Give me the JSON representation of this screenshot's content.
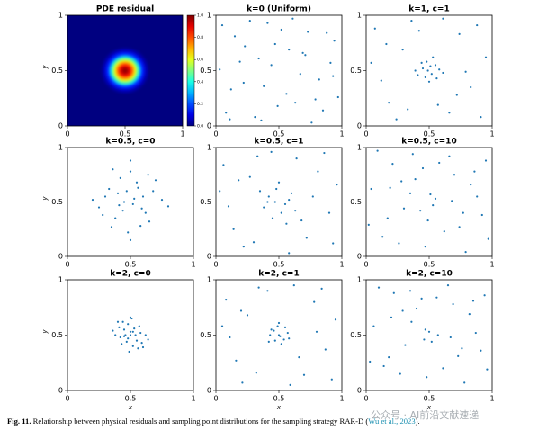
{
  "chart_data": [
    {
      "type": "heatmap",
      "title": "PDE residual",
      "ylabel": "y",
      "center": [
        0.5,
        0.5
      ],
      "radius": [
        0.2,
        0.17,
        0.14,
        0.12,
        0.1,
        0.08,
        0.06,
        0.04,
        0.02
      ],
      "values": [
        0.05,
        0.15,
        0.3,
        0.45,
        0.6,
        0.72,
        0.84,
        0.93,
        0.99
      ],
      "xlim": [
        0,
        1
      ],
      "ylim": [
        0,
        1
      ],
      "xticks": [
        0,
        0.5,
        1
      ],
      "yticks": [
        0,
        0.5,
        1
      ],
      "clim": [
        0,
        1
      ],
      "cticks": [
        {
          "value": 0,
          "label": "0.0"
        },
        0.2,
        0.4,
        0.6,
        0.8,
        {
          "value": 1,
          "label": "1.0"
        }
      ]
    },
    {
      "type": "scatter",
      "title": "k=0 (Uniform)",
      "color": "#1f77b4",
      "x": [
        0.05,
        0.12,
        0.23,
        0.31,
        0.44,
        0.52,
        0.63,
        0.71,
        0.82,
        0.94,
        0.08,
        0.19,
        0.27,
        0.38,
        0.49,
        0.58,
        0.67,
        0.76,
        0.88,
        0.97,
        0.03,
        0.15,
        0.34,
        0.41,
        0.56,
        0.73,
        0.85,
        0.91,
        0.22,
        0.47,
        0.61,
        0.79,
        0.36,
        0.11,
        0.69,
        0.93
      ],
      "y": [
        0.91,
        0.33,
        0.72,
        0.08,
        0.55,
        0.87,
        0.21,
        0.64,
        0.42,
        0.77,
        0.12,
        0.58,
        0.95,
        0.36,
        0.18,
        0.69,
        0.47,
        0.03,
        0.84,
        0.26,
        0.51,
        0.81,
        0.61,
        0.93,
        0.29,
        0.85,
        0.14,
        0.57,
        0.39,
        0.74,
        0.97,
        0.24,
        0.05,
        0.06,
        0.66,
        0.45
      ],
      "xlim": [
        0,
        1
      ],
      "ylim": [
        0,
        1
      ],
      "xticks": [
        0,
        0.5,
        1
      ],
      "yticks": [
        0,
        0.5,
        1
      ]
    },
    {
      "type": "scatter",
      "title": "k=1, c=1",
      "color": "#1f77b4",
      "x": [
        0.45,
        0.52,
        0.48,
        0.55,
        0.41,
        0.58,
        0.5,
        0.47,
        0.53,
        0.44,
        0.56,
        0.49,
        0.51,
        0.39,
        0.61,
        0.07,
        0.18,
        0.29,
        0.36,
        0.66,
        0.74,
        0.83,
        0.95,
        0.12,
        0.24,
        0.72,
        0.88,
        0.04,
        0.33,
        0.61,
        0.79,
        0.91,
        0.16,
        0.42,
        0.57
      ],
      "y": [
        0.52,
        0.47,
        0.58,
        0.55,
        0.46,
        0.51,
        0.4,
        0.44,
        0.62,
        0.57,
        0.43,
        0.5,
        0.54,
        0.5,
        0.48,
        0.88,
        0.21,
        0.69,
        0.95,
        0.12,
        0.83,
        0.35,
        0.62,
        0.41,
        0.06,
        0.28,
        0.91,
        0.57,
        0.15,
        0.97,
        0.49,
        0.08,
        0.74,
        0.86,
        0.19
      ],
      "xlim": [
        0,
        1
      ],
      "ylim": [
        0,
        1
      ],
      "xticks": [
        0,
        0.5,
        1
      ],
      "yticks": [
        0,
        0.5,
        1
      ]
    },
    {
      "type": "scatter",
      "title": "k=0.5, c=0",
      "ylabel": "y",
      "color": "#1f77b4",
      "x": [
        0.3,
        0.42,
        0.55,
        0.68,
        0.25,
        0.38,
        0.5,
        0.62,
        0.75,
        0.33,
        0.45,
        0.58,
        0.7,
        0.28,
        0.4,
        0.52,
        0.65,
        0.36,
        0.48,
        0.6,
        0.44,
        0.56,
        0.2,
        0.8,
        0.5,
        0.47,
        0.53,
        0.41,
        0.59,
        0.35,
        0.64,
        0.5
      ],
      "y": [
        0.55,
        0.72,
        0.68,
        0.6,
        0.45,
        0.35,
        0.78,
        0.4,
        0.52,
        0.62,
        0.5,
        0.28,
        0.7,
        0.38,
        0.58,
        0.48,
        0.32,
        0.8,
        0.22,
        0.55,
        0.42,
        0.63,
        0.52,
        0.46,
        0.15,
        0.6,
        0.53,
        0.47,
        0.44,
        0.27,
        0.75,
        0.88
      ],
      "xlim": [
        0,
        1
      ],
      "ylim": [
        0,
        1
      ],
      "xticks": [
        0,
        0.5,
        1
      ],
      "yticks": [
        0,
        0.5,
        1
      ]
    },
    {
      "type": "scatter",
      "title": "k=0.5, c=1",
      "color": "#1f77b4",
      "x": [
        0.42,
        0.55,
        0.48,
        0.6,
        0.38,
        0.52,
        0.45,
        0.58,
        0.35,
        0.63,
        0.5,
        0.47,
        0.56,
        0.41,
        0.06,
        0.14,
        0.27,
        0.33,
        0.72,
        0.81,
        0.9,
        0.96,
        0.1,
        0.22,
        0.68,
        0.86,
        0.03,
        0.3,
        0.64,
        0.77,
        0.93,
        0.18,
        0.44,
        0.58
      ],
      "y": [
        0.55,
        0.48,
        0.62,
        0.58,
        0.45,
        0.4,
        0.35,
        0.52,
        0.6,
        0.42,
        0.68,
        0.5,
        0.3,
        0.5,
        0.84,
        0.25,
        0.73,
        0.92,
        0.17,
        0.78,
        0.4,
        0.66,
        0.46,
        0.09,
        0.33,
        0.95,
        0.6,
        0.13,
        0.9,
        0.55,
        0.12,
        0.7,
        0.96,
        0.03
      ],
      "xlim": [
        0,
        1
      ],
      "ylim": [
        0,
        1
      ],
      "xticks": [
        0,
        0.5,
        1
      ],
      "yticks": [
        0,
        0.5,
        1
      ]
    },
    {
      "type": "scatter",
      "title": "k=0.5, c=10",
      "color": "#1f77b4",
      "x": [
        0.04,
        0.13,
        0.21,
        0.3,
        0.39,
        0.47,
        0.55,
        0.66,
        0.74,
        0.83,
        0.92,
        0.09,
        0.17,
        0.26,
        0.35,
        0.45,
        0.53,
        0.62,
        0.7,
        0.79,
        0.88,
        0.97,
        0.02,
        0.19,
        0.37,
        0.43,
        0.51,
        0.58,
        0.68,
        0.86,
        0.95,
        0.28,
        0.77,
        0.49
      ],
      "y": [
        0.62,
        0.18,
        0.85,
        0.44,
        0.71,
        0.09,
        0.53,
        0.92,
        0.27,
        0.66,
        0.38,
        0.97,
        0.35,
        0.12,
        0.58,
        0.81,
        0.47,
        0.23,
        0.75,
        0.04,
        0.55,
        0.16,
        0.29,
        0.63,
        0.94,
        0.42,
        0.57,
        0.86,
        0.51,
        0.78,
        0.88,
        0.69,
        0.4,
        0.33
      ],
      "xlim": [
        0,
        1
      ],
      "ylim": [
        0,
        1
      ],
      "xticks": [
        0,
        0.5,
        1
      ],
      "yticks": [
        0,
        0.5,
        1
      ]
    },
    {
      "type": "scatter",
      "title": "k=2, c=0",
      "ylabel": "y",
      "xlabel": "x",
      "color": "#1f77b4",
      "x": [
        0.5,
        0.45,
        0.55,
        0.42,
        0.58,
        0.48,
        0.52,
        0.38,
        0.62,
        0.47,
        0.53,
        0.44,
        0.56,
        0.5,
        0.41,
        0.59,
        0.46,
        0.54,
        0.36,
        0.64,
        0.49,
        0.51,
        0.43,
        0.57,
        0.5,
        0.4,
        0.6,
        0.48,
        0.52,
        0.45
      ],
      "y": [
        0.5,
        0.55,
        0.45,
        0.48,
        0.52,
        0.6,
        0.4,
        0.5,
        0.5,
        0.44,
        0.56,
        0.62,
        0.38,
        0.66,
        0.57,
        0.43,
        0.5,
        0.5,
        0.54,
        0.46,
        0.35,
        0.65,
        0.42,
        0.58,
        0.53,
        0.62,
        0.39,
        0.47,
        0.53,
        0.49
      ],
      "xlim": [
        0,
        1
      ],
      "ylim": [
        0,
        1
      ],
      "xticks": [
        0,
        0.5,
        1
      ],
      "yticks": [
        0,
        0.5,
        1
      ]
    },
    {
      "type": "scatter",
      "title": "k=2, c=1",
      "xlabel": "x",
      "color": "#1f77b4",
      "x": [
        0.5,
        0.46,
        0.54,
        0.43,
        0.57,
        0.49,
        0.52,
        0.47,
        0.55,
        0.44,
        0.51,
        0.58,
        0.42,
        0.5,
        0.08,
        0.16,
        0.25,
        0.34,
        0.7,
        0.78,
        0.87,
        0.95,
        0.11,
        0.21,
        0.66,
        0.84,
        0.05,
        0.32,
        0.62,
        0.8,
        0.92,
        0.2,
        0.41,
        0.59
      ],
      "y": [
        0.5,
        0.54,
        0.46,
        0.5,
        0.52,
        0.58,
        0.42,
        0.45,
        0.57,
        0.55,
        0.49,
        0.47,
        0.44,
        0.61,
        0.82,
        0.27,
        0.68,
        0.93,
        0.14,
        0.8,
        0.37,
        0.64,
        0.48,
        0.07,
        0.3,
        0.92,
        0.58,
        0.16,
        0.95,
        0.53,
        0.1,
        0.72,
        0.9,
        0.05
      ],
      "xlim": [
        0,
        1
      ],
      "ylim": [
        0,
        1
      ],
      "xticks": [
        0,
        0.5,
        1
      ],
      "yticks": [
        0,
        0.5,
        1
      ]
    },
    {
      "type": "scatter",
      "title": "k=2, c=10",
      "xlabel": "x",
      "color": "#1f77b4",
      "x": [
        0.06,
        0.14,
        0.22,
        0.31,
        0.4,
        0.48,
        0.57,
        0.65,
        0.73,
        0.82,
        0.91,
        0.1,
        0.18,
        0.27,
        0.36,
        0.44,
        0.52,
        0.61,
        0.69,
        0.78,
        0.87,
        0.96,
        0.03,
        0.2,
        0.35,
        0.46,
        0.5,
        0.56,
        0.67,
        0.85,
        0.94,
        0.29,
        0.76,
        0.47
      ],
      "y": [
        0.58,
        0.22,
        0.88,
        0.41,
        0.74,
        0.12,
        0.5,
        0.95,
        0.31,
        0.69,
        0.36,
        0.93,
        0.3,
        0.15,
        0.62,
        0.83,
        0.44,
        0.2,
        0.78,
        0.07,
        0.52,
        0.19,
        0.26,
        0.66,
        0.9,
        0.46,
        0.53,
        0.84,
        0.48,
        0.81,
        0.86,
        0.72,
        0.38,
        0.55
      ],
      "xlim": [
        0,
        1
      ],
      "ylim": [
        0,
        1
      ],
      "xticks": [
        0,
        0.5,
        1
      ],
      "yticks": [
        0,
        0.5,
        1
      ]
    }
  ],
  "caption": {
    "label": "Fig. 11.",
    "text": "Relationship between physical residuals and sampling point distributions for the sampling strategy RAR-D (",
    "citation": "Wu et al., 2023",
    "end": ")."
  },
  "watermark": "公众号 · AI前沿文献速递"
}
